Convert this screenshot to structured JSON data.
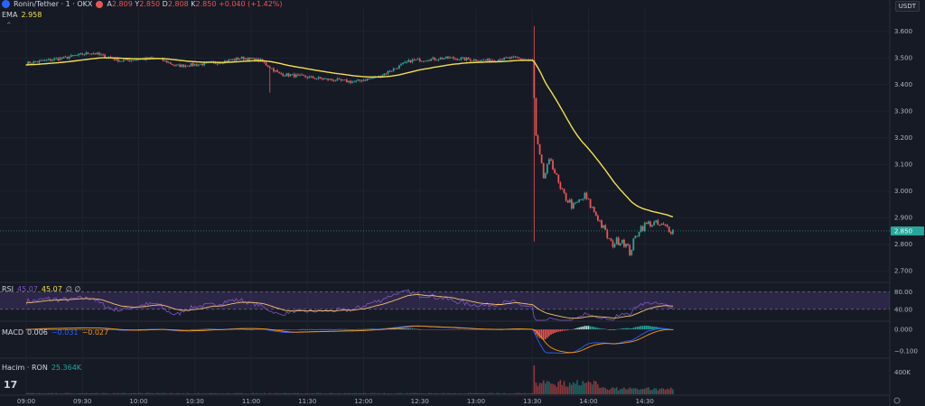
{
  "header": {
    "symbol": "Ronin/Tether · 1 · OKX",
    "ohlc": [
      {
        "k": "A",
        "v": "2.809"
      },
      {
        "k": "Y",
        "v": "2.850"
      },
      {
        "k": "D",
        "v": "2.808"
      },
      {
        "k": "K",
        "v": "2.850"
      }
    ],
    "change": "+0.040 (+1.42%)",
    "currency": "USDT"
  },
  "ema_legend": {
    "label": "EMA",
    "value": "2.958"
  },
  "rsi_legend": {
    "label": "RSI",
    "value1": "45.07",
    "value2": "45.07",
    "extra": "∅ ∅"
  },
  "macd_legend": {
    "label": "MACD",
    "v1": "0.006",
    "v2": "−0.031",
    "v3": "−0.027"
  },
  "vol_legend": {
    "label": "Hacim · RON",
    "value": "25.364K"
  },
  "colors": {
    "up": "#26a69a",
    "down": "#ef5350",
    "ema": "#f4e04d",
    "rsi": "#7e57c2",
    "rsi_ma": "#f5c26b",
    "macd": "#2962ff",
    "signal": "#ff9800"
  },
  "price_axis": {
    "ticks": [
      "3.600",
      "3.500",
      "3.400",
      "3.300",
      "3.200",
      "3.100",
      "3.000",
      "2.900",
      "2.800",
      "2.700"
    ],
    "last": "2.850"
  },
  "rsi_axis": {
    "ticks": [
      "80.00",
      "40.00"
    ]
  },
  "macd_axis": {
    "ticks": [
      "0.000",
      "−0.100"
    ]
  },
  "vol_axis": {
    "ticks": [
      "400K"
    ]
  },
  "time_axis": {
    "ticks": [
      "09:00",
      "09:30",
      "10:00",
      "10:30",
      "11:00",
      "11:30",
      "12:00",
      "12:30",
      "13:00",
      "13:30",
      "14:00",
      "14:30"
    ]
  },
  "chart_data": {
    "type": "candlestick",
    "x_start": "09:00",
    "interval_minutes": 1,
    "ylim": [
      2.66,
      3.65
    ],
    "grid": true,
    "anchors": [
      [
        0,
        3.48
      ],
      [
        10,
        3.49
      ],
      [
        20,
        3.5
      ],
      [
        35,
        3.52
      ],
      [
        50,
        3.49
      ],
      [
        70,
        3.5
      ],
      [
        80,
        3.47
      ],
      [
        100,
        3.48
      ],
      [
        115,
        3.5
      ],
      [
        125,
        3.49
      ],
      [
        135,
        3.44
      ],
      [
        160,
        3.42
      ],
      [
        175,
        3.41
      ],
      [
        188,
        3.43
      ],
      [
        205,
        3.49
      ],
      [
        225,
        3.5
      ],
      [
        245,
        3.49
      ],
      [
        260,
        3.5
      ],
      [
        270,
        3.49
      ],
      [
        272,
        3.2
      ],
      [
        276,
        3.05
      ],
      [
        280,
        3.12
      ],
      [
        285,
        3.0
      ],
      [
        292,
        2.94
      ],
      [
        298,
        2.98
      ],
      [
        305,
        2.9
      ],
      [
        312,
        2.8
      ],
      [
        318,
        2.82
      ],
      [
        322,
        2.77
      ],
      [
        327,
        2.86
      ],
      [
        333,
        2.88
      ],
      [
        338,
        2.87
      ],
      [
        343,
        2.86
      ],
      [
        345,
        2.85
      ]
    ],
    "spikes": [
      {
        "t": 130,
        "high": 3.37
      },
      {
        "t": 271,
        "high": 3.62,
        "low": 2.81
      }
    ],
    "ema_last": 2.958,
    "rsi_last": 45.07,
    "rsi_band": [
      40,
      80
    ],
    "macd_last": 0.006,
    "volume_tick": "400K"
  }
}
